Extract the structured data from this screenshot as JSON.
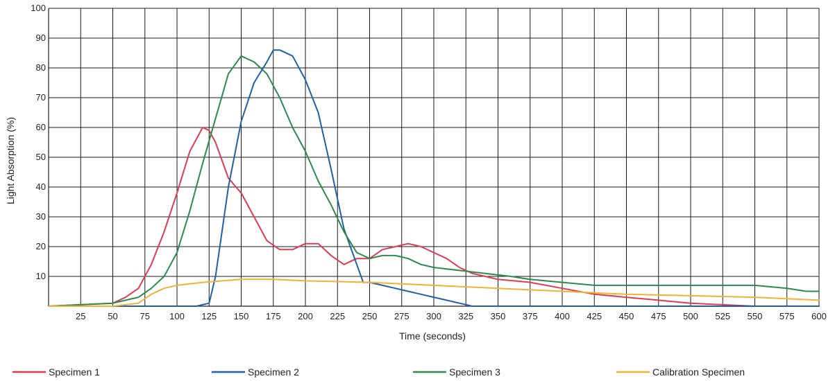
{
  "chart_data": {
    "type": "line",
    "title": "",
    "xlabel": "Time (seconds)",
    "ylabel": "Light Absorption (%)",
    "xlim": [
      0,
      600
    ],
    "ylim": [
      0,
      100
    ],
    "x_ticks": [
      25,
      50,
      75,
      100,
      125,
      150,
      175,
      200,
      225,
      250,
      275,
      300,
      325,
      350,
      375,
      400,
      425,
      450,
      475,
      500,
      525,
      550,
      575,
      600
    ],
    "y_ticks": [
      10,
      20,
      30,
      40,
      50,
      60,
      70,
      80,
      90,
      100
    ],
    "grid": true,
    "legend_position": "bottom",
    "series": [
      {
        "name": "Specimen 1",
        "color": "#e03a4e",
        "points": [
          [
            0,
            0
          ],
          [
            25,
            0.5
          ],
          [
            50,
            1
          ],
          [
            60,
            3
          ],
          [
            70,
            6
          ],
          [
            80,
            14
          ],
          [
            90,
            25
          ],
          [
            100,
            38
          ],
          [
            110,
            52
          ],
          [
            120,
            60
          ],
          [
            125,
            59
          ],
          [
            130,
            55
          ],
          [
            140,
            43
          ],
          [
            150,
            38
          ],
          [
            160,
            30
          ],
          [
            170,
            22
          ],
          [
            180,
            19
          ],
          [
            190,
            19
          ],
          [
            200,
            21
          ],
          [
            210,
            21
          ],
          [
            220,
            17
          ],
          [
            230,
            14
          ],
          [
            240,
            16
          ],
          [
            250,
            16
          ],
          [
            260,
            19
          ],
          [
            270,
            20
          ],
          [
            280,
            21
          ],
          [
            290,
            20
          ],
          [
            300,
            18
          ],
          [
            310,
            16
          ],
          [
            320,
            13
          ],
          [
            330,
            11
          ],
          [
            340,
            10
          ],
          [
            350,
            9
          ],
          [
            375,
            8
          ],
          [
            400,
            6
          ],
          [
            425,
            4
          ],
          [
            450,
            3
          ],
          [
            475,
            2
          ],
          [
            500,
            1
          ],
          [
            525,
            0.5
          ],
          [
            550,
            0
          ],
          [
            600,
            0
          ]
        ]
      },
      {
        "name": "Specimen 2",
        "color": "#1f5fa6",
        "points": [
          [
            0,
            0
          ],
          [
            100,
            0
          ],
          [
            115,
            0
          ],
          [
            125,
            1
          ],
          [
            130,
            10
          ],
          [
            135,
            25
          ],
          [
            140,
            40
          ],
          [
            150,
            62
          ],
          [
            160,
            75
          ],
          [
            170,
            82
          ],
          [
            175,
            86
          ],
          [
            180,
            86
          ],
          [
            190,
            84
          ],
          [
            200,
            76
          ],
          [
            210,
            65
          ],
          [
            220,
            46
          ],
          [
            230,
            26
          ],
          [
            240,
            14
          ],
          [
            245,
            8
          ],
          [
            250,
            8
          ],
          [
            260,
            7
          ],
          [
            270,
            6
          ],
          [
            280,
            5
          ],
          [
            290,
            4
          ],
          [
            300,
            3
          ],
          [
            310,
            2
          ],
          [
            320,
            1
          ],
          [
            330,
            0
          ],
          [
            600,
            0
          ]
        ]
      },
      {
        "name": "Specimen 3",
        "color": "#2a8a4a",
        "points": [
          [
            0,
            0
          ],
          [
            25,
            0.5
          ],
          [
            50,
            1
          ],
          [
            60,
            2
          ],
          [
            70,
            3
          ],
          [
            80,
            6
          ],
          [
            90,
            10
          ],
          [
            100,
            18
          ],
          [
            110,
            32
          ],
          [
            120,
            48
          ],
          [
            130,
            63
          ],
          [
            140,
            78
          ],
          [
            150,
            84
          ],
          [
            160,
            82
          ],
          [
            170,
            78
          ],
          [
            180,
            70
          ],
          [
            190,
            60
          ],
          [
            200,
            52
          ],
          [
            210,
            42
          ],
          [
            220,
            34
          ],
          [
            230,
            25
          ],
          [
            240,
            18
          ],
          [
            250,
            16
          ],
          [
            260,
            17
          ],
          [
            270,
            17
          ],
          [
            280,
            16
          ],
          [
            290,
            14
          ],
          [
            300,
            13
          ],
          [
            320,
            12
          ],
          [
            340,
            11
          ],
          [
            360,
            10
          ],
          [
            375,
            9
          ],
          [
            400,
            8
          ],
          [
            425,
            7
          ],
          [
            450,
            7
          ],
          [
            475,
            7
          ],
          [
            500,
            7
          ],
          [
            525,
            7
          ],
          [
            550,
            7
          ],
          [
            575,
            6
          ],
          [
            590,
            5
          ],
          [
            600,
            5
          ]
        ]
      },
      {
        "name": "Calibration Specimen",
        "color": "#f2b134",
        "points": [
          [
            0,
            0
          ],
          [
            50,
            0
          ],
          [
            70,
            1
          ],
          [
            80,
            4
          ],
          [
            90,
            6
          ],
          [
            100,
            7
          ],
          [
            120,
            8
          ],
          [
            150,
            9
          ],
          [
            175,
            9
          ],
          [
            200,
            8.5
          ],
          [
            250,
            8
          ],
          [
            300,
            7
          ],
          [
            350,
            6
          ],
          [
            400,
            5
          ],
          [
            450,
            4
          ],
          [
            500,
            3.5
          ],
          [
            550,
            3
          ],
          [
            600,
            2
          ]
        ]
      }
    ]
  }
}
